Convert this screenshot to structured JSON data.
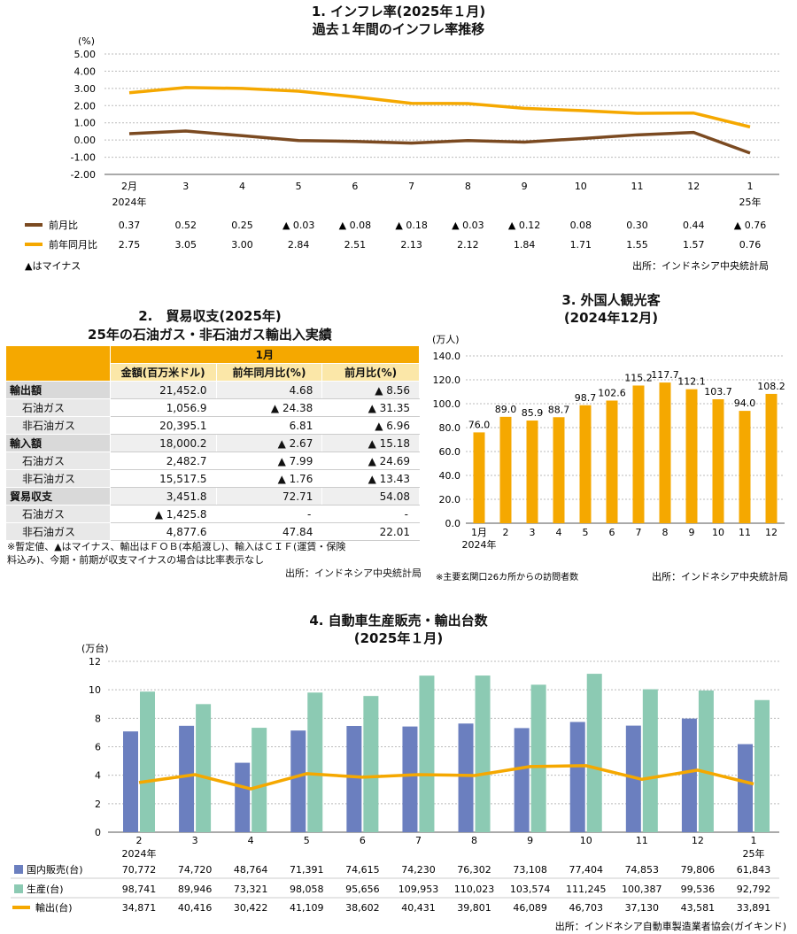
{
  "sec1": {
    "title1": "1. インフレ率(2025年１月)",
    "title2": "過去１年間のインフレ率推移",
    "unit": "(%)",
    "legend_mom": "前月比",
    "legend_yoy": "前年同月比",
    "note": "▲はマイナス",
    "source": "出所：インドネシア中央統計局",
    "mom_labels": [
      "0.37",
      "0.52",
      "0.25",
      "▲ 0.03",
      "▲ 0.08",
      "▲ 0.18",
      "▲ 0.03",
      "▲ 0.12",
      "0.08",
      "0.30",
      "0.44",
      "▲ 0.76"
    ],
    "yoy_labels": [
      "2.75",
      "3.05",
      "3.00",
      "2.84",
      "2.51",
      "2.13",
      "2.12",
      "1.84",
      "1.71",
      "1.55",
      "1.57",
      "0.76"
    ],
    "colors": {
      "mom": "#7b4a21",
      "yoy": "#f5a800"
    }
  },
  "sec2": {
    "title1": "2.　貿易収支(2025年)",
    "title2": "25年の石油ガス・非石油ガス輸出入実績",
    "month_header": "1月",
    "col_headers": [
      "金額(百万米ドル)",
      "前年同月比(%)",
      "前月比(%)"
    ],
    "rows": [
      {
        "label": "輸出額",
        "values": [
          "21,452.0",
          "4.68",
          "▲ 8.56"
        ]
      },
      {
        "label": "石油ガス",
        "values": [
          "1,056.9",
          "▲ 24.38",
          "▲ 31.35"
        ]
      },
      {
        "label": "非石油ガス",
        "values": [
          "20,395.1",
          "6.81",
          "▲ 6.96"
        ]
      },
      {
        "label": "輸入額",
        "values": [
          "18,000.2",
          "▲ 2.67",
          "▲ 15.18"
        ]
      },
      {
        "label": "石油ガス",
        "values": [
          "2,482.7",
          "▲ 7.99",
          "▲ 24.69"
        ]
      },
      {
        "label": "非石油ガス",
        "values": [
          "15,517.5",
          "▲ 1.76",
          "▲ 13.43"
        ]
      },
      {
        "label": "貿易収支",
        "values": [
          "3,451.8",
          "72.71",
          "54.08"
        ]
      },
      {
        "label": "石油ガス",
        "values": [
          "▲ 1,425.8",
          "-",
          "-"
        ]
      },
      {
        "label": "非石油ガス",
        "values": [
          "4,877.6",
          "47.84",
          "22.01"
        ]
      }
    ],
    "note1": "※暫定値、▲はマイナス、輸出はＦＯＢ(本船渡し)、輸入はＣＩＦ(運賃・保険",
    "note2": "料込み)、今期・前期が収支マイナスの場合は比率表示なし",
    "source": "出所：インドネシア中央統計局"
  },
  "sec3": {
    "title1": "3. 外国人観光客",
    "title2": "(2024年12月)",
    "unit": "(万人)",
    "note": "※主要玄関口26カ所からの訪問者数",
    "source": "出所：インドネシア中央統計局",
    "color": "#f5a800"
  },
  "sec4": {
    "title1": "4. 自動車生産販売・輸出台数",
    "title2": "(2025年１月)",
    "unit": "(万台)",
    "legend_domestic": "国内販売(台)",
    "legend_production": "生産(台)",
    "legend_export": "輸出(台)",
    "domestic_labels": [
      "70,772",
      "74,720",
      "48,764",
      "71,391",
      "74,615",
      "74,230",
      "76,302",
      "73,108",
      "77,404",
      "74,853",
      "79,806",
      "61,843"
    ],
    "production_labels": [
      "98,741",
      "89,946",
      "73,321",
      "98,058",
      "95,656",
      "109,953",
      "110,023",
      "103,574",
      "111,245",
      "100,387",
      "99,536",
      "92,792"
    ],
    "export_labels": [
      "34,871",
      "40,416",
      "30,422",
      "41,109",
      "38,602",
      "40,431",
      "39,801",
      "46,089",
      "46,703",
      "37,130",
      "43,581",
      "33,891"
    ],
    "source": "出所：インドネシア自動車製造業者協会(ガイキンド)",
    "colors": {
      "domestic": "#6b7fbf",
      "production": "#8ccab3",
      "export": "#f5a800"
    }
  },
  "chart_data": [
    {
      "type": "line",
      "x": [
        "2",
        "3",
        "4",
        "5",
        "6",
        "7",
        "8",
        "9",
        "10",
        "11",
        "12",
        "1"
      ],
      "x_sublabels": {
        "first": "2024年",
        "last": "25年"
      },
      "series": [
        {
          "name": "前月比",
          "values": [
            0.37,
            0.52,
            0.25,
            -0.03,
            -0.08,
            -0.18,
            -0.03,
            -0.12,
            0.08,
            0.3,
            0.44,
            -0.76
          ]
        },
        {
          "name": "前年同月比",
          "values": [
            2.75,
            3.05,
            3.0,
            2.84,
            2.51,
            2.13,
            2.12,
            1.84,
            1.71,
            1.55,
            1.57,
            0.76
          ]
        }
      ],
      "x_tick_labels": [
        "2月",
        "3",
        "4",
        "5",
        "6",
        "7",
        "8",
        "9",
        "10",
        "11",
        "12",
        "1"
      ],
      "ylim": [
        -2,
        5
      ],
      "yticks": [
        "5.00",
        "4.00",
        "3.00",
        "2.00",
        "1.00",
        "0.00",
        "-1.00",
        "-2.00"
      ],
      "grid": true
    },
    {
      "type": "bar",
      "categories": [
        "1月",
        "2",
        "3",
        "4",
        "5",
        "6",
        "7",
        "8",
        "9",
        "10",
        "11",
        "12"
      ],
      "first_sublabel": "2024年",
      "values": [
        76.0,
        89.0,
        85.9,
        88.7,
        98.7,
        102.6,
        115.2,
        117.7,
        112.1,
        103.7,
        94.0,
        108.2
      ],
      "value_labels": [
        "76.0",
        "89.0",
        "85.9",
        "88.7",
        "98.7",
        "102.6",
        "115.2",
        "117.7",
        "112.1",
        "103.7",
        "94.0",
        "108.2"
      ],
      "ylim": [
        0,
        140
      ],
      "yticks": [
        "140.0",
        "120.0",
        "100.0",
        "80.0",
        "60.0",
        "40.0",
        "20.0",
        "0.0"
      ],
      "grid": true
    },
    {
      "type": "bar",
      "categories": [
        "2",
        "3",
        "4",
        "5",
        "6",
        "7",
        "8",
        "9",
        "10",
        "11",
        "12",
        "1"
      ],
      "x_sublabels": {
        "first": "2024年",
        "last": "25年"
      },
      "series": [
        {
          "name": "国内販売(台)",
          "values": [
            70772,
            74720,
            48764,
            71391,
            74615,
            74230,
            76302,
            73108,
            77404,
            74853,
            79806,
            61843
          ]
        },
        {
          "name": "生産(台)",
          "values": [
            98741,
            89946,
            73321,
            98058,
            95656,
            109953,
            110023,
            103574,
            111245,
            100387,
            99536,
            92792
          ]
        },
        {
          "name": "輸出(台)",
          "type": "line",
          "values": [
            34871,
            40416,
            30422,
            41109,
            38602,
            40431,
            39801,
            46089,
            46703,
            37130,
            43581,
            33891
          ]
        }
      ],
      "ylim": [
        0,
        12
      ],
      "yticks": [
        "12",
        "10",
        "8",
        "6",
        "4",
        "2",
        "0"
      ],
      "grid": true
    }
  ]
}
